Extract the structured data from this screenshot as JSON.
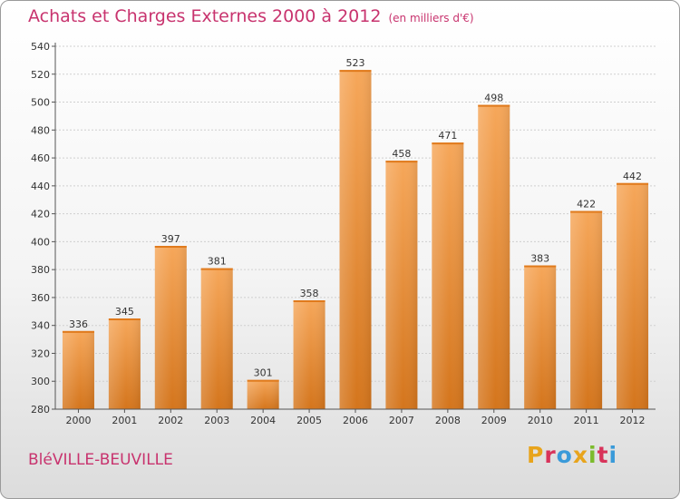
{
  "header": {
    "title": "Achats et Charges Externes 2000 à 2012",
    "unit": "(en milliers d'€)"
  },
  "footer": {
    "commune": "BléVILLE-BEUVILLE",
    "logo_text": "Proxiti",
    "logo_colors": [
      "#e8a41c",
      "#d8335a",
      "#3a9ad9",
      "#e8a41c",
      "#7bbb2c",
      "#d8335a",
      "#3a9ad9"
    ]
  },
  "colors": {
    "bar_top": "#f6a75a",
    "bar_bottom": "#d4751c",
    "grid": "#d0d0d0",
    "axis": "#555555",
    "title": "#c8336e"
  },
  "chart_data": {
    "type": "bar",
    "title": "Achats et Charges Externes 2000 à 2012",
    "subtitle": "(en milliers d'€)",
    "xlabel": "",
    "ylabel": "",
    "categories": [
      "2000",
      "2001",
      "2002",
      "2003",
      "2004",
      "2005",
      "2006",
      "2007",
      "2008",
      "2009",
      "2010",
      "2011",
      "2012"
    ],
    "values": [
      336,
      345,
      397,
      381,
      301,
      358,
      523,
      458,
      471,
      498,
      383,
      422,
      442
    ],
    "ylim": [
      280,
      540
    ],
    "yticks": [
      280,
      300,
      320,
      340,
      360,
      380,
      400,
      420,
      440,
      460,
      480,
      500,
      520,
      540
    ],
    "grid": true,
    "legend": "none"
  }
}
